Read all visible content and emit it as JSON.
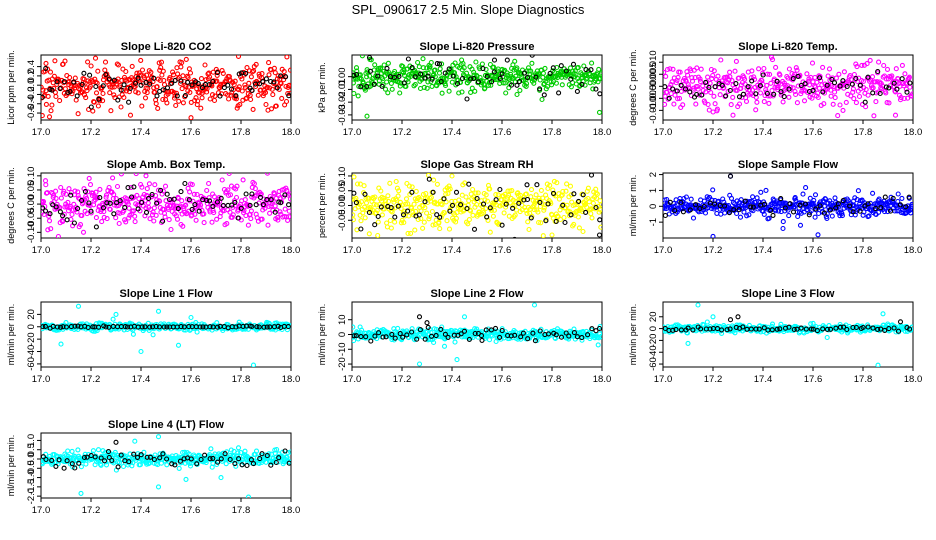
{
  "figure": {
    "title": "SPL_090617  2.5 Min. Slope Diagnostics"
  },
  "chart_data": [
    {
      "type": "scatter",
      "title": "Slope Li-820 CO2",
      "xlabel": "",
      "ylabel": "Licor ppm per min.",
      "xlim": [
        17.0,
        18.0
      ],
      "ylim": [
        -0.75,
        0.65
      ],
      "xticks": [
        "17.0",
        "17.2",
        "17.4",
        "17.6",
        "17.8",
        "18.0"
      ],
      "yticks": [
        "-0.6",
        "-0.4",
        "-0.2",
        "0.0",
        "0.2",
        "0.4"
      ],
      "series": [
        {
          "color": "#ff0000",
          "spread": 0.25,
          "n": 420,
          "outliers": [
            [
              17.02,
              0.47
            ],
            [
              17.6,
              -0.7
            ],
            [
              17.79,
              0.62
            ],
            [
              17.04,
              -0.55
            ]
          ]
        },
        {
          "color": "#000000",
          "spread": 0.15,
          "n": 70
        }
      ]
    },
    {
      "type": "scatter",
      "title": "Slope Li-820 Pressure",
      "xlabel": "",
      "ylabel": "kPa per min.",
      "xlim": [
        17.0,
        18.0
      ],
      "ylim": [
        -0.034,
        0.017
      ],
      "xticks": [
        "17.0",
        "17.2",
        "17.4",
        "17.6",
        "17.8",
        "18.0"
      ],
      "yticks": [
        "-0.03",
        "-0.02",
        "-0.01",
        "0.00"
      ],
      "series": [
        {
          "color": "#00cc00",
          "spread": 0.005,
          "n": 420,
          "outliers": [
            [
              17.06,
              -0.031
            ],
            [
              17.66,
              -0.014
            ],
            [
              17.99,
              -0.028
            ],
            [
              17.44,
              -0.012
            ]
          ]
        },
        {
          "color": "#000000",
          "spread": 0.006,
          "n": 60,
          "outliers": [
            [
              17.07,
              0.015
            ],
            [
              17.35,
              0.01
            ],
            [
              17.57,
              0.013
            ]
          ]
        }
      ]
    },
    {
      "type": "scatter",
      "title": "Slope Li-820 Temp.",
      "xlabel": "",
      "ylabel": "degrees C per min.",
      "xlim": [
        17.0,
        18.0
      ],
      "ylim": [
        -0.014,
        0.013
      ],
      "xticks": [
        "17.0",
        "17.2",
        "17.4",
        "17.6",
        "17.8",
        "18.0"
      ],
      "yticks": [
        "-0.010",
        "-0.005",
        "0.000",
        "0.005",
        "0.010"
      ],
      "series": [
        {
          "color": "#ff00ff",
          "spread": 0.0042,
          "n": 400,
          "outliers": [
            [
              17.28,
              -0.012
            ],
            [
              17.72,
              -0.01
            ],
            [
              17.93,
              -0.012
            ]
          ]
        },
        {
          "color": "#000000",
          "spread": 0.003,
          "n": 60
        }
      ]
    },
    {
      "type": "scatter",
      "title": "Slope Amb. Box Temp.",
      "xlabel": "",
      "ylabel": "degrees C per min.",
      "xlim": [
        17.0,
        18.0
      ],
      "ylim": [
        -0.12,
        0.11
      ],
      "xticks": [
        "17.0",
        "17.2",
        "17.4",
        "17.6",
        "17.8",
        "18.0"
      ],
      "yticks": [
        "-0.10",
        "-0.05",
        "0.00",
        "0.05",
        "0.10"
      ],
      "series": [
        {
          "color": "#ff00ff",
          "spread": 0.04,
          "n": 420,
          "outliers": [
            [
              17.42,
              0.1
            ],
            [
              17.17,
              -0.1
            ],
            [
              17.52,
              -0.09
            ]
          ]
        },
        {
          "color": "#000000",
          "spread": 0.03,
          "n": 70
        }
      ]
    },
    {
      "type": "scatter",
      "title": "Slope Gas Stream RH",
      "xlabel": "",
      "ylabel": "percent per min.",
      "xlim": [
        17.0,
        18.0
      ],
      "ylim": [
        -0.11,
        0.11
      ],
      "xticks": [
        "17.0",
        "17.2",
        "17.4",
        "17.6",
        "17.8",
        "18.0"
      ],
      "yticks": [
        "-0.05",
        "0.00",
        "0.05",
        "0.10"
      ],
      "series": [
        {
          "color": "#ffff00",
          "spread": 0.035,
          "n": 420,
          "outliers": [
            [
              17.4,
              0.1
            ],
            [
              17.8,
              -0.1
            ],
            [
              17.39,
              -0.08
            ]
          ]
        },
        {
          "color": "#000000",
          "spread": 0.035,
          "n": 60,
          "outliers": [
            [
              17.99,
              -0.1
            ],
            [
              17.7,
              0.07
            ]
          ]
        }
      ]
    },
    {
      "type": "scatter",
      "title": "Slope Sample Flow",
      "xlabel": "",
      "ylabel": "ml/min per min.",
      "xlim": [
        17.0,
        18.0
      ],
      "ylim": [
        -2.0,
        2.1
      ],
      "xticks": [
        "17.0",
        "17.2",
        "17.4",
        "17.6",
        "17.8",
        "18.0"
      ],
      "yticks": [
        "-1",
        "0",
        "1",
        "2"
      ],
      "series": [
        {
          "color": "#0000ff",
          "spread": 0.3,
          "n": 420,
          "outliers": [
            [
              17.27,
              1.9
            ],
            [
              17.2,
              -1.9
            ],
            [
              17.62,
              -1.8
            ],
            [
              17.55,
              -1.2
            ],
            [
              17.48,
              -1.4
            ]
          ]
        },
        {
          "color": "#000000",
          "spread": 0.3,
          "n": 50,
          "outliers": [
            [
              17.27,
              1.9
            ]
          ]
        }
      ]
    },
    {
      "type": "scatter",
      "title": "Slope Line 1 Flow",
      "xlabel": "",
      "ylabel": "ml/min per min.",
      "xlim": [
        17.0,
        18.0
      ],
      "ylim": [
        -65,
        40
      ],
      "xticks": [
        "17.0",
        "17.2",
        "17.4",
        "17.6",
        "17.8",
        "18.0"
      ],
      "yticks": [
        "-60",
        "-40",
        "-20",
        "0",
        "20"
      ],
      "series": [
        {
          "color": "#00ffff",
          "spread": 3,
          "n": 380,
          "outliers": [
            [
              17.15,
              33
            ],
            [
              17.08,
              -28
            ],
            [
              17.4,
              -40
            ],
            [
              17.85,
              -62
            ],
            [
              17.55,
              -30
            ],
            [
              17.47,
              25
            ],
            [
              17.3,
              20
            ],
            [
              17.6,
              15
            ]
          ]
        },
        {
          "color": "#000000",
          "spread": 0.6,
          "n": 70
        }
      ]
    },
    {
      "type": "scatter",
      "title": "Slope Line 2 Flow",
      "xlabel": "",
      "ylabel": "ml/min per min.",
      "xlim": [
        17.0,
        18.0
      ],
      "ylim": [
        -22,
        22
      ],
      "xticks": [
        "17.0",
        "17.2",
        "17.4",
        "17.6",
        "17.8",
        "18.0"
      ],
      "yticks": [
        "-20",
        "-10",
        "0",
        "10"
      ],
      "series": [
        {
          "color": "#00ffff",
          "spread": 2,
          "n": 380,
          "outliers": [
            [
              17.27,
              -20
            ],
            [
              17.42,
              -17
            ],
            [
              17.73,
              20
            ],
            [
              17.45,
              12
            ],
            [
              17.37,
              -8
            ]
          ]
        },
        {
          "color": "#000000",
          "spread": 2,
          "n": 60,
          "outliers": [
            [
              17.27,
              12
            ],
            [
              17.3,
              8
            ],
            [
              17.52,
              -4
            ]
          ]
        }
      ]
    },
    {
      "type": "scatter",
      "title": "Slope Line 3 Flow",
      "xlabel": "",
      "ylabel": "ml/min per min.",
      "xlim": [
        17.0,
        18.0
      ],
      "ylim": [
        -65,
        45
      ],
      "xticks": [
        "17.0",
        "17.2",
        "17.4",
        "17.6",
        "17.8",
        "18.0"
      ],
      "yticks": [
        "-60",
        "-40",
        "-20",
        "0",
        "20"
      ],
      "series": [
        {
          "color": "#00ffff",
          "spread": 3,
          "n": 380,
          "outliers": [
            [
              17.14,
              40
            ],
            [
              17.86,
              -62
            ],
            [
              17.1,
              -25
            ],
            [
              17.88,
              25
            ],
            [
              17.2,
              20
            ]
          ]
        },
        {
          "color": "#000000",
          "spread": 2,
          "n": 60,
          "outliers": [
            [
              17.3,
              20
            ],
            [
              17.27,
              15
            ]
          ]
        }
      ]
    },
    {
      "type": "scatter",
      "title": "Slope Line 4 (LT) Flow",
      "xlabel": "",
      "ylabel": "ml/min per min.",
      "xlim": [
        17.0,
        18.0
      ],
      "ylim": [
        -2.1,
        1.4
      ],
      "xticks": [
        "17.0",
        "17.2",
        "17.4",
        "17.6",
        "17.8",
        "18.0"
      ],
      "yticks": [
        "-2.0",
        "-1.5",
        "-1.0",
        "-0.5",
        "0.0",
        "0.5",
        "1.0"
      ],
      "series": [
        {
          "color": "#00ffff",
          "spread": 0.2,
          "n": 380,
          "outliers": [
            [
              17.16,
              -1.85
            ],
            [
              17.47,
              1.2
            ],
            [
              17.47,
              -1.5
            ],
            [
              17.58,
              -1.1
            ],
            [
              17.72,
              -1.0
            ],
            [
              17.83,
              -2.05
            ],
            [
              17.23,
              0.5
            ]
          ]
        },
        {
          "color": "#000000",
          "spread": 0.2,
          "n": 60,
          "outliers": [
            [
              17.3,
              0.9
            ],
            [
              17.27,
              0.4
            ]
          ]
        }
      ]
    }
  ]
}
